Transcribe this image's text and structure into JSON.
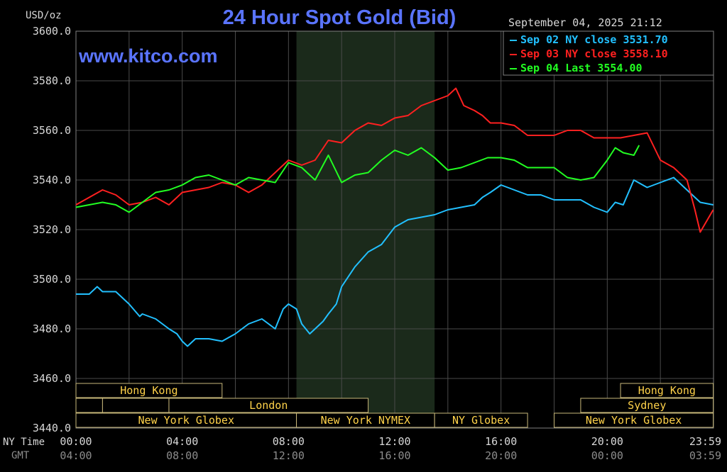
{
  "chart_data": {
    "type": "line",
    "title": "24 Hour Spot Gold (Bid)",
    "watermark": "www.kitco.com",
    "unit_label": "USD/oz",
    "timestamp": "September 04, 2025 21:12",
    "ylim": [
      3440,
      3600
    ],
    "y_ticks": [
      "3600.0",
      "3580.0",
      "3560.0",
      "3540.0",
      "3520.0",
      "3500.0",
      "3480.0",
      "3460.0",
      "3440.0"
    ],
    "xlim": [
      0,
      24
    ],
    "ny_time_label": "NY Time",
    "gmt_label": "GMT",
    "x_ticks_ny": [
      "00:00",
      "04:00",
      "08:00",
      "12:00",
      "16:00",
      "20:00",
      "23:59"
    ],
    "x_ticks_gmt": [
      "04:00",
      "08:00",
      "12:00",
      "16:00",
      "20:00",
      "00:00",
      "03:59"
    ],
    "grid": true,
    "legend_position": "top-right",
    "shaded_session": [
      8.3,
      13.5
    ],
    "series": [
      {
        "name": "Sep 02 NY close 3531.70",
        "color": "#22c0ff",
        "x": [
          0,
          0.5,
          0.8,
          1.0,
          1.5,
          2.0,
          2.4,
          2.5,
          3.0,
          3.5,
          3.8,
          4.0,
          4.2,
          4.5,
          5.0,
          5.5,
          6.0,
          6.5,
          7.0,
          7.5,
          7.8,
          8.0,
          8.3,
          8.5,
          8.8,
          9.0,
          9.3,
          9.5,
          9.8,
          10.0,
          10.5,
          11.0,
          11.5,
          12.0,
          12.5,
          13.0,
          13.5,
          14.0,
          14.5,
          15.0,
          15.3,
          15.6,
          16.0,
          16.5,
          17.0,
          17.5,
          18.0,
          18.5,
          19.0,
          19.5,
          20.0,
          20.3,
          20.6,
          21.0,
          21.5,
          22.0,
          22.5,
          23.0,
          23.5,
          23.99
        ],
        "values": [
          3494,
          3494,
          3497,
          3495,
          3495,
          3490,
          3485,
          3486,
          3484,
          3480,
          3478,
          3475,
          3473,
          3476,
          3476,
          3475,
          3478,
          3482,
          3484,
          3480,
          3488,
          3490,
          3488,
          3482,
          3478,
          3480,
          3483,
          3486,
          3490,
          3497,
          3505,
          3511,
          3514,
          3521,
          3524,
          3525,
          3526,
          3528,
          3529,
          3530,
          3533,
          3535,
          3538,
          3536,
          3534,
          3534,
          3532,
          3532,
          3532,
          3529,
          3527,
          3531,
          3530,
          3540,
          3537,
          3539,
          3541,
          3536,
          3531,
          3530
        ]
      },
      {
        "name": "Sep 03 NY close 3558.10",
        "color": "#ff2020",
        "x": [
          0,
          0.5,
          1.0,
          1.5,
          2.0,
          2.5,
          3.0,
          3.5,
          4.0,
          4.5,
          5.0,
          5.5,
          6.0,
          6.5,
          7.0,
          7.5,
          8.0,
          8.5,
          9.0,
          9.5,
          10.0,
          10.5,
          11.0,
          11.5,
          12.0,
          12.5,
          13.0,
          13.5,
          14.0,
          14.3,
          14.6,
          15.0,
          15.3,
          15.6,
          16.0,
          16.5,
          17.0,
          17.5,
          18.0,
          18.5,
          19.0,
          19.5,
          20.0,
          20.5,
          21.0,
          21.5,
          22.0,
          22.5,
          23.0,
          23.3,
          23.5,
          23.99
        ],
        "values": [
          3530,
          3533,
          3536,
          3534,
          3530,
          3531,
          3533,
          3530,
          3535,
          3536,
          3537,
          3539,
          3538,
          3535,
          3538,
          3543,
          3548,
          3546,
          3548,
          3556,
          3555,
          3560,
          3563,
          3562,
          3565,
          3566,
          3570,
          3572,
          3574,
          3577,
          3570,
          3568,
          3566,
          3563,
          3563,
          3562,
          3558,
          3558,
          3558,
          3560,
          3560,
          3557,
          3557,
          3557,
          3558,
          3559,
          3548,
          3545,
          3540,
          3528,
          3519,
          3528
        ]
      },
      {
        "name": "Sep 04 Last 3554.00",
        "color": "#22ff22",
        "x": [
          0,
          0.5,
          1.0,
          1.5,
          2.0,
          2.5,
          3.0,
          3.5,
          4.0,
          4.5,
          5.0,
          5.5,
          6.0,
          6.5,
          7.0,
          7.5,
          8.0,
          8.5,
          9.0,
          9.5,
          10.0,
          10.5,
          11.0,
          11.5,
          12.0,
          12.5,
          13.0,
          13.5,
          14.0,
          14.5,
          15.0,
          15.5,
          16.0,
          16.5,
          17.0,
          17.5,
          18.0,
          18.5,
          19.0,
          19.5,
          20.0,
          20.3,
          20.6,
          21.0,
          21.2
        ],
        "values": [
          3529,
          3530,
          3531,
          3530,
          3527,
          3531,
          3535,
          3536,
          3538,
          3541,
          3542,
          3540,
          3538,
          3541,
          3540,
          3539,
          3547,
          3545,
          3540,
          3550,
          3539,
          3542,
          3543,
          3548,
          3552,
          3550,
          3553,
          3549,
          3544,
          3545,
          3547,
          3549,
          3549,
          3548,
          3545,
          3545,
          3545,
          3541,
          3540,
          3541,
          3548,
          3553,
          3551,
          3550,
          3554
        ]
      }
    ],
    "sessions": [
      {
        "label": "Hong Kong",
        "start": 0,
        "end": 5.5,
        "row": 0
      },
      {
        "label": "",
        "start": 0,
        "end": 1.0,
        "row": 1
      },
      {
        "label": "",
        "start": 1.0,
        "end": 3.5,
        "row": 1
      },
      {
        "label": "London",
        "start": 3.5,
        "end": 11.0,
        "row": 1
      },
      {
        "label": "New York Globex",
        "start": 0,
        "end": 8.3,
        "row": 2
      },
      {
        "label": "New York NYMEX",
        "start": 8.3,
        "end": 13.5,
        "row": 2
      },
      {
        "label": "NY Globex",
        "start": 13.5,
        "end": 17.0,
        "row": 2
      },
      {
        "label": "Hong Kong",
        "start": 20.5,
        "end": 23.99,
        "row": 0
      },
      {
        "label": "Sydney",
        "start": 19.0,
        "end": 23.99,
        "row": 1
      },
      {
        "label": "New York Globex",
        "start": 18.0,
        "end": 23.99,
        "row": 2
      }
    ]
  }
}
